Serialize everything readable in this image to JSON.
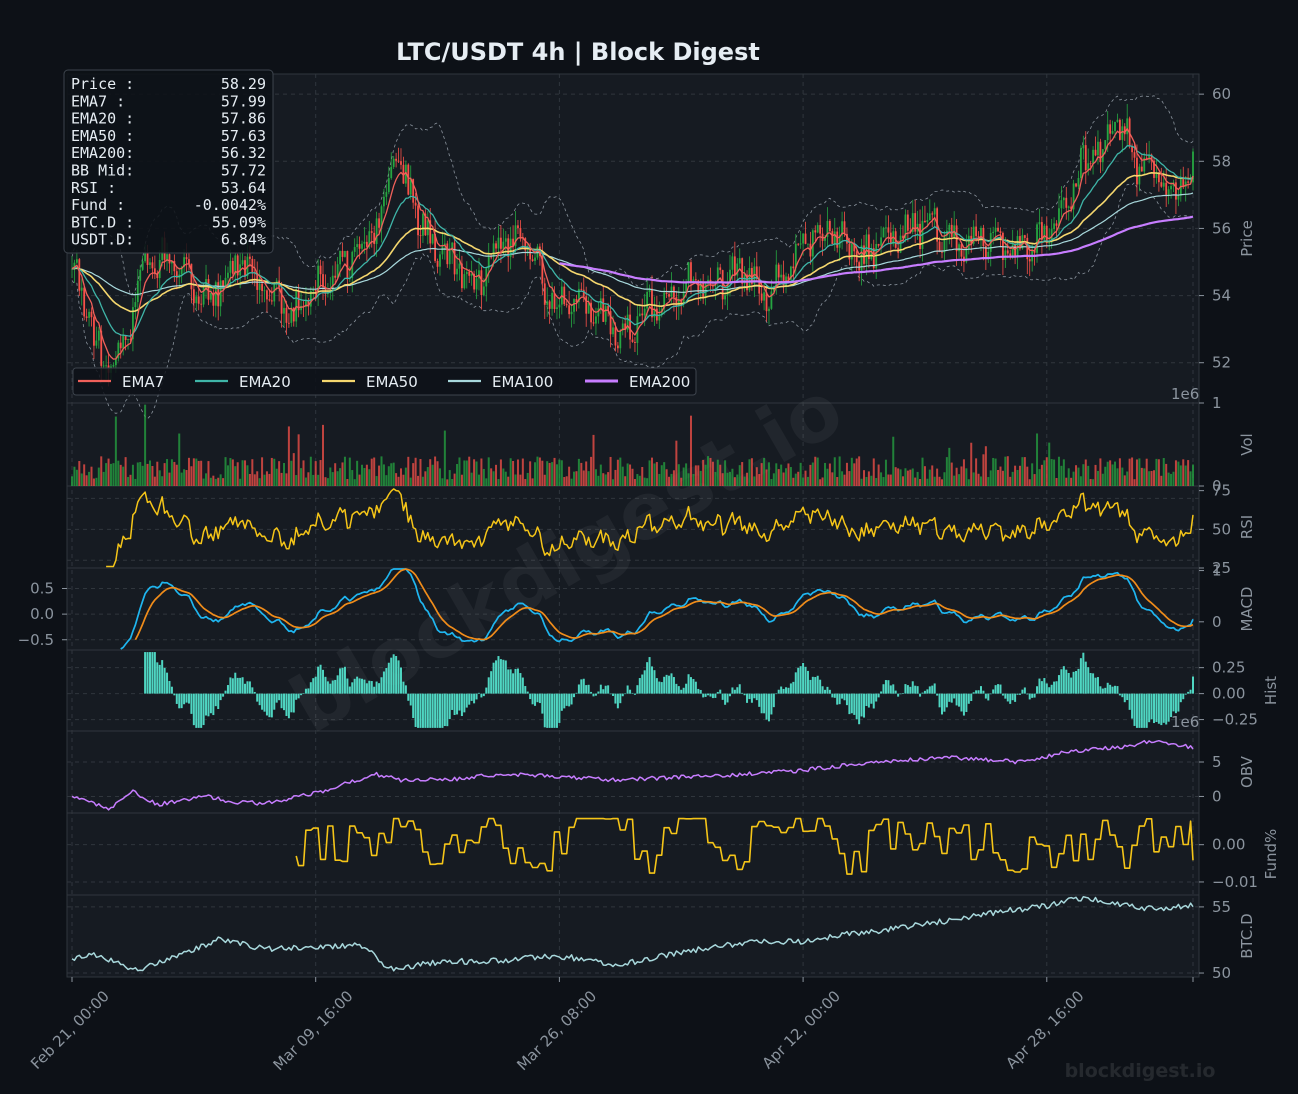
{
  "chart_data": {
    "type": "candlestick",
    "title": "LTC/USDT  4h  |  Block Digest",
    "watermark": "blockdigest.io",
    "footer_watermark": "blockdigest.io",
    "colors": {
      "background": "#0d1117",
      "panel": "#161b22",
      "up": "#26a641",
      "down": "#f85149",
      "ema7": "#f0605a",
      "ema20": "#3fb5a8",
      "ema50": "#f5d76e",
      "ema100": "#a8d8dc",
      "ema200": "#c77dff",
      "rsi": "#f5c518",
      "macd": "#1fb6f0",
      "signal": "#f08c1a",
      "hist": "#4fd6c2",
      "obv": "#c77dff",
      "funding": "#f5c518",
      "btcd": "#a8d8dc",
      "text": "#c9d1d9",
      "grid": "#30363d"
    },
    "x_ticks": [
      "Feb 21, 00:00",
      "Mar 09, 16:00",
      "Mar 26, 08:00",
      "Apr 12, 00:00",
      "Apr 28, 16:00"
    ],
    "info_box": [
      {
        "label": "Price :",
        "value": "58.29"
      },
      {
        "label": "EMA7  :",
        "value": "57.99"
      },
      {
        "label": "EMA20 :",
        "value": "57.86"
      },
      {
        "label": "EMA50 :",
        "value": "57.63"
      },
      {
        "label": "EMA200:",
        "value": "56.32"
      },
      {
        "label": "BB Mid:",
        "value": "57.72"
      },
      {
        "label": "RSI   :",
        "value": "53.64"
      },
      {
        "label": "Fund  :",
        "value": "-0.0042%"
      },
      {
        "label": "BTC.D :",
        "value": "55.09%"
      },
      {
        "label": "USDT.D:",
        "value": "6.84%"
      }
    ],
    "legend": [
      "EMA7",
      "EMA20",
      "EMA50",
      "EMA100",
      "EMA200"
    ],
    "price": {
      "ylabel": "Price",
      "ylim": [
        50.8,
        60.6
      ],
      "ticks": [
        52,
        54,
        56,
        58,
        60
      ],
      "close_anchors": [
        [
          0,
          54.8
        ],
        [
          8,
          53.2
        ],
        [
          14,
          51.6
        ],
        [
          22,
          52.8
        ],
        [
          30,
          54.9
        ],
        [
          40,
          55.2
        ],
        [
          50,
          54.2
        ],
        [
          58,
          54.0
        ],
        [
          68,
          55.1
        ],
        [
          78,
          54.4
        ],
        [
          90,
          53.4
        ],
        [
          100,
          54.2
        ],
        [
          110,
          54.8
        ],
        [
          118,
          55.3
        ],
        [
          126,
          56.4
        ],
        [
          132,
          58.0
        ],
        [
          138,
          57.2
        ],
        [
          146,
          55.6
        ],
        [
          156,
          55.0
        ],
        [
          166,
          54.4
        ],
        [
          176,
          55.6
        ],
        [
          186,
          55.7
        ],
        [
          196,
          53.9
        ],
        [
          206,
          53.8
        ],
        [
          216,
          53.6
        ],
        [
          226,
          52.6
        ],
        [
          234,
          53.6
        ],
        [
          244,
          54.0
        ],
        [
          254,
          54.6
        ],
        [
          264,
          54.4
        ],
        [
          274,
          54.9
        ],
        [
          284,
          54.0
        ],
        [
          294,
          54.6
        ],
        [
          304,
          55.8
        ],
        [
          314,
          55.9
        ],
        [
          324,
          55.1
        ],
        [
          334,
          55.6
        ],
        [
          344,
          55.9
        ],
        [
          354,
          56.1
        ],
        [
          364,
          55.4
        ],
        [
          374,
          55.7
        ],
        [
          384,
          55.3
        ],
        [
          394,
          55.5
        ],
        [
          404,
          56.2
        ],
        [
          414,
          57.8
        ],
        [
          424,
          58.5
        ],
        [
          430,
          59.2
        ],
        [
          436,
          58.0
        ],
        [
          444,
          57.4
        ],
        [
          452,
          57.2
        ],
        [
          460,
          57.6
        ]
      ],
      "ema7_last": 57.99,
      "ema20_last": 57.86,
      "ema50_last": 57.63,
      "ema200_last": 56.32,
      "bb_mid_last": 57.72
    },
    "volume": {
      "ylabel": "Vol",
      "ylim": [
        0,
        1
      ],
      "ticks": [
        0,
        1
      ],
      "scale_label": "1e6"
    },
    "rsi": {
      "ylabel": "RSI",
      "ylim": [
        25,
        78
      ],
      "ticks": [
        25,
        50,
        75
      ],
      "last": 53.64
    },
    "macd": {
      "ylabel": "MACD",
      "ylim": [
        -0.7,
        0.9
      ],
      "ticks_left": [
        "0.5",
        "0.0",
        "−0.5"
      ],
      "ticks_right": [
        "1",
        "0"
      ]
    },
    "hist": {
      "ylabel": "Hist",
      "ylim": [
        -0.36,
        0.42
      ],
      "ticks": [
        "0.25",
        "0.00",
        "−0.25"
      ]
    },
    "obv": {
      "ylabel": "OBV",
      "ylim": [
        -2.4,
        9.5
      ],
      "ticks": [
        0,
        5
      ],
      "scale_label": "1e6",
      "anchors": [
        [
          0,
          0.1
        ],
        [
          15,
          -1.8
        ],
        [
          25,
          0.8
        ],
        [
          35,
          -1.2
        ],
        [
          55,
          0.1
        ],
        [
          65,
          -0.8
        ],
        [
          80,
          -1.0
        ],
        [
          100,
          0.5
        ],
        [
          125,
          3.2
        ],
        [
          135,
          2.4
        ],
        [
          160,
          2.6
        ],
        [
          175,
          3.2
        ],
        [
          200,
          2.9
        ],
        [
          220,
          2.4
        ],
        [
          250,
          2.8
        ],
        [
          280,
          3.3
        ],
        [
          300,
          3.8
        ],
        [
          330,
          5.0
        ],
        [
          360,
          5.6
        ],
        [
          390,
          5.0
        ],
        [
          410,
          6.6
        ],
        [
          430,
          7.1
        ],
        [
          445,
          8.2
        ],
        [
          460,
          7.0
        ]
      ]
    },
    "funding": {
      "ylabel": "Fund%",
      "ylim": [
        -0.0135,
        0.0085
      ],
      "ticks": [
        "0.00",
        "−0.01"
      ],
      "start_index": 92,
      "last": -0.0042
    },
    "btcd": {
      "ylabel": "BTC.D",
      "ylim": [
        49.7,
        55.9
      ],
      "ticks": [
        50,
        55
      ],
      "last": 55.09,
      "anchors": [
        [
          0,
          51.0
        ],
        [
          10,
          51.4
        ],
        [
          25,
          50.2
        ],
        [
          40,
          51.0
        ],
        [
          60,
          52.5
        ],
        [
          80,
          51.8
        ],
        [
          100,
          52.0
        ],
        [
          120,
          52.1
        ],
        [
          130,
          50.3
        ],
        [
          150,
          50.8
        ],
        [
          180,
          51.0
        ],
        [
          200,
          51.3
        ],
        [
          225,
          50.6
        ],
        [
          250,
          51.6
        ],
        [
          280,
          52.4
        ],
        [
          300,
          52.4
        ],
        [
          320,
          53.0
        ],
        [
          340,
          53.4
        ],
        [
          360,
          54.0
        ],
        [
          380,
          54.6
        ],
        [
          400,
          55.1
        ],
        [
          415,
          55.7
        ],
        [
          430,
          55.2
        ],
        [
          445,
          54.8
        ],
        [
          460,
          55.1
        ]
      ]
    }
  }
}
